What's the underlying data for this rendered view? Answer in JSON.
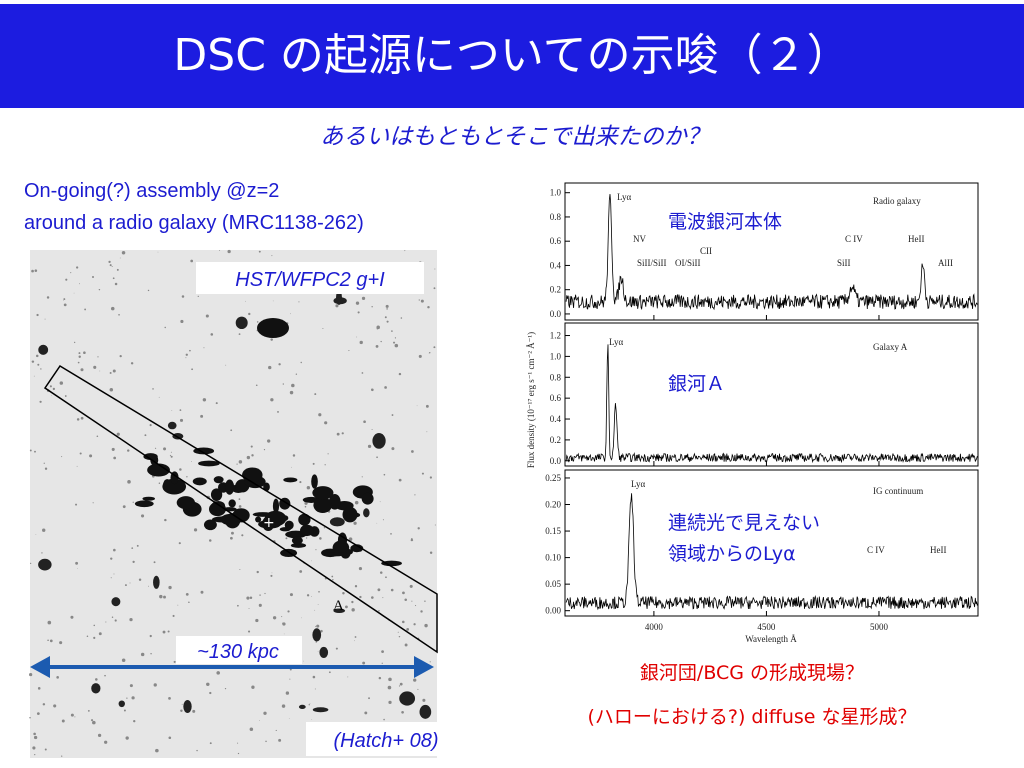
{
  "header": {
    "title": "DSC の起源についての示唆（２）",
    "subtitle": "あるいはもともとそこで出来たのか？"
  },
  "left": {
    "caption": [
      "On-going(?) assembly @z=2",
      "around a radio galaxy (MRC1138-262)"
    ],
    "image_label": "HST/WFPC2 g+I",
    "slit_label": "A",
    "scale_label": "~130 kpc",
    "credit": "(Hatch+ 08)"
  },
  "spectra": {
    "y_axis_label": "Flux density (10⁻¹⁷ erg s⁻¹ cm⁻² Å⁻¹)",
    "x_axis_label": "Wavelength Å",
    "xlim": [
      3605,
      5440
    ],
    "xticks": [
      4000,
      4500,
      5000
    ],
    "panels": [
      {
        "name": "Radio galaxy",
        "ylim": [
          -0.05,
          1.08
        ],
        "yticks": [
          {
            "value": 0,
            "label": "0.0"
          },
          {
            "value": 0.2,
            "label": "0.2"
          },
          {
            "value": 0.4,
            "label": "0.4"
          },
          {
            "value": 0.6,
            "label": "0.6"
          },
          {
            "value": 0.8,
            "label": "0.8"
          },
          {
            "value": 1,
            "label": "1.0"
          }
        ],
        "lines": [
          "Lyα",
          "NV",
          "SiII/SiII",
          "OI/SiII",
          "CII",
          "C IV",
          "SiII",
          "HeII",
          "AlII"
        ],
        "annotation": [
          "電波銀河本体"
        ]
      },
      {
        "name": "Galaxy A",
        "ylim": [
          -0.05,
          1.32
        ],
        "yticks": [
          {
            "value": 0,
            "label": "0.0"
          },
          {
            "value": 0.2,
            "label": "0.2"
          },
          {
            "value": 0.4,
            "label": "0.4"
          },
          {
            "value": 0.6,
            "label": "0.6"
          },
          {
            "value": 0.8,
            "label": "0.8"
          },
          {
            "value": 1,
            "label": "1.0"
          },
          {
            "value": 1.2,
            "label": "1.2"
          }
        ],
        "lines": [
          "Lyα"
        ],
        "annotation": [
          "銀河Ａ"
        ]
      },
      {
        "name": "IG continuum",
        "ylim": [
          -0.01,
          0.265
        ],
        "yticks": [
          {
            "value": 0,
            "label": "0.00"
          },
          {
            "value": 0.05,
            "label": "0.05"
          },
          {
            "value": 0.1,
            "label": "0.10"
          },
          {
            "value": 0.15,
            "label": "0.15"
          },
          {
            "value": 0.2,
            "label": "0.20"
          },
          {
            "value": 0.25,
            "label": "0.25"
          }
        ],
        "lines": [
          "Lyα",
          "C IV",
          "HeII"
        ],
        "annotation": [
          "連続光で見えない",
          "領域からのLyα"
        ]
      }
    ]
  },
  "notes": [
    "銀河団/BCG の形成現場？",
    "(ハローにおける?) diffuse な星形成？"
  ]
}
